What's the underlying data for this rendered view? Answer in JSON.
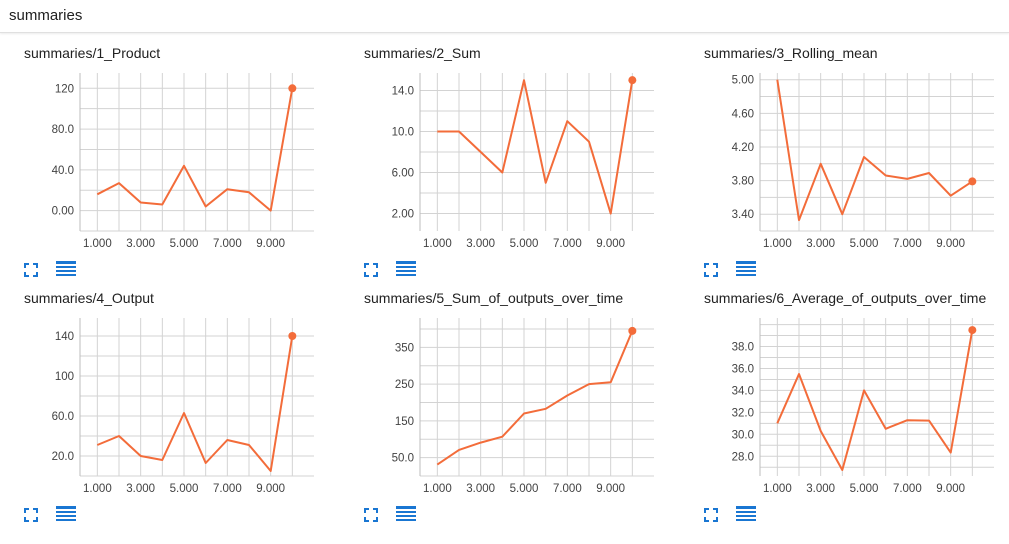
{
  "header": {
    "title": "summaries"
  },
  "colors": {
    "line": "#f36c3a",
    "grid": "#d3d3d3",
    "icon": "#1976d2"
  },
  "icons": {
    "expand": "fullscreen-icon",
    "data": "list-icon"
  },
  "chart_data": [
    {
      "type": "line",
      "title": "summaries/1_Product",
      "x": [
        1,
        2,
        3,
        4,
        5,
        6,
        7,
        8,
        9,
        10
      ],
      "y": [
        16,
        27,
        8,
        6,
        44,
        4,
        21,
        18,
        0,
        120
      ],
      "xticks": [
        "1.000",
        "3.000",
        "5.000",
        "7.000",
        "9.000"
      ],
      "xtick_values": [
        1,
        3,
        5,
        7,
        9
      ],
      "yticks": [
        "0.00",
        "40.0",
        "80.0",
        "120"
      ],
      "ytick_values": [
        0,
        40,
        80,
        120
      ],
      "xlim": [
        0.2,
        11
      ],
      "ylim": [
        -20,
        135
      ],
      "grid": true
    },
    {
      "type": "line",
      "title": "summaries/2_Sum",
      "x": [
        1,
        2,
        3,
        4,
        5,
        6,
        7,
        8,
        9,
        10
      ],
      "y": [
        10,
        10,
        8,
        6,
        15,
        5,
        11,
        9,
        2,
        15
      ],
      "xticks": [
        "1.000",
        "3.000",
        "5.000",
        "7.000",
        "9.000"
      ],
      "xtick_values": [
        1,
        3,
        5,
        7,
        9
      ],
      "yticks": [
        "2.00",
        "6.00",
        "10.0",
        "14.0"
      ],
      "ytick_values": [
        2,
        6,
        10,
        14
      ],
      "xlim": [
        0.2,
        11
      ],
      "ylim": [
        0.3,
        15.7
      ],
      "grid": true
    },
    {
      "type": "line",
      "title": "summaries/3_Rolling_mean",
      "x": [
        1,
        2,
        3,
        4,
        5,
        6,
        7,
        8,
        9,
        10
      ],
      "y": [
        5.0,
        3.33,
        4.0,
        3.4,
        4.08,
        3.86,
        3.82,
        3.89,
        3.62,
        3.79
      ],
      "xticks": [
        "1.000",
        "3.000",
        "5.000",
        "7.000",
        "9.000"
      ],
      "xtick_values": [
        1,
        3,
        5,
        7,
        9
      ],
      "yticks": [
        "3.40",
        "3.80",
        "4.20",
        "4.60",
        "5.00"
      ],
      "ytick_values": [
        3.4,
        3.8,
        4.2,
        4.6,
        5.0
      ],
      "xlim": [
        0.2,
        11
      ],
      "ylim": [
        3.2,
        5.08
      ],
      "grid": true
    },
    {
      "type": "line",
      "title": "summaries/4_Output",
      "x": [
        1,
        2,
        3,
        4,
        5,
        6,
        7,
        8,
        9,
        10
      ],
      "y": [
        31,
        40,
        20,
        16,
        63,
        13,
        36,
        31,
        5,
        140
      ],
      "xticks": [
        "1.000",
        "3.000",
        "5.000",
        "7.000",
        "9.000"
      ],
      "xtick_values": [
        1,
        3,
        5,
        7,
        9
      ],
      "yticks": [
        "20.0",
        "60.0",
        "100",
        "140"
      ],
      "ytick_values": [
        20,
        60,
        100,
        140
      ],
      "xlim": [
        0.2,
        11
      ],
      "ylim": [
        0,
        158
      ],
      "grid": true
    },
    {
      "type": "line",
      "title": "summaries/5_Sum_of_outputs_over_time",
      "x": [
        1,
        2,
        3,
        4,
        5,
        6,
        7,
        8,
        9,
        10
      ],
      "y": [
        31,
        71,
        91,
        107,
        170,
        183,
        219,
        250,
        255,
        395
      ],
      "xticks": [
        "1.000",
        "3.000",
        "5.000",
        "7.000",
        "9.000"
      ],
      "xtick_values": [
        1,
        3,
        5,
        7,
        9
      ],
      "yticks": [
        "50.0",
        "150",
        "250",
        "350"
      ],
      "ytick_values": [
        50,
        150,
        250,
        350
      ],
      "xlim": [
        0.2,
        11
      ],
      "ylim": [
        0,
        430
      ],
      "grid": true
    },
    {
      "type": "line",
      "title": "summaries/6_Average_of_outputs_over_time",
      "x": [
        1,
        2,
        3,
        4,
        5,
        6,
        7,
        8,
        9,
        10
      ],
      "y": [
        31.0,
        35.5,
        30.3,
        26.75,
        34.0,
        30.5,
        31.29,
        31.25,
        28.33,
        39.5
      ],
      "xticks": [
        "1.000",
        "3.000",
        "5.000",
        "7.000",
        "9.000"
      ],
      "xtick_values": [
        1,
        3,
        5,
        7,
        9
      ],
      "yticks": [
        "28.0",
        "30.0",
        "32.0",
        "34.0",
        "36.0",
        "38.0"
      ],
      "ytick_values": [
        28,
        30,
        32,
        34,
        36,
        38
      ],
      "xlim": [
        0.2,
        11
      ],
      "ylim": [
        26.2,
        40.6
      ],
      "grid": true
    }
  ]
}
